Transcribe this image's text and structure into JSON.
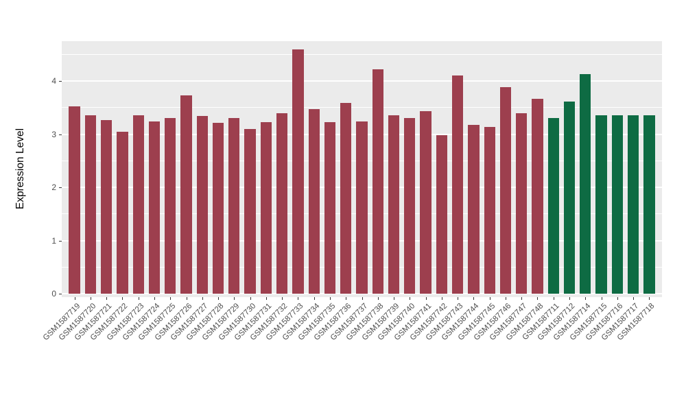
{
  "chart_data": {
    "type": "bar",
    "title": "",
    "xlabel": "",
    "ylabel": "Expression Level",
    "ylim": [
      0,
      4.75
    ],
    "yticks": [
      0,
      1,
      2,
      3,
      4
    ],
    "grid": true,
    "legend_position": "none",
    "panel_background": "#EBEBEB",
    "grid_color": "#FFFFFF",
    "axis_text_color": "#4D4D4D",
    "groups": [
      {
        "name": "group-1",
        "color": "#9D3F4E"
      },
      {
        "name": "group-2",
        "color": "#0E6B43"
      }
    ],
    "bars": [
      {
        "label": "GSM1587719",
        "value": 3.52,
        "group": 0
      },
      {
        "label": "GSM1587720",
        "value": 3.35,
        "group": 0
      },
      {
        "label": "GSM1587721",
        "value": 3.27,
        "group": 0
      },
      {
        "label": "GSM1587722",
        "value": 3.05,
        "group": 0
      },
      {
        "label": "GSM1587723",
        "value": 3.35,
        "group": 0
      },
      {
        "label": "GSM1587724",
        "value": 3.24,
        "group": 0
      },
      {
        "label": "GSM1587725",
        "value": 3.3,
        "group": 0
      },
      {
        "label": "GSM1587726",
        "value": 3.73,
        "group": 0
      },
      {
        "label": "GSM1587727",
        "value": 3.34,
        "group": 0
      },
      {
        "label": "GSM1587728",
        "value": 3.21,
        "group": 0
      },
      {
        "label": "GSM1587729",
        "value": 3.3,
        "group": 0
      },
      {
        "label": "GSM1587730",
        "value": 3.1,
        "group": 0
      },
      {
        "label": "GSM1587731",
        "value": 3.23,
        "group": 0
      },
      {
        "label": "GSM1587732",
        "value": 3.39,
        "group": 0
      },
      {
        "label": "GSM1587733",
        "value": 4.6,
        "group": 0
      },
      {
        "label": "GSM1587734",
        "value": 3.47,
        "group": 0
      },
      {
        "label": "GSM1587735",
        "value": 3.23,
        "group": 0
      },
      {
        "label": "GSM1587736",
        "value": 3.59,
        "group": 0
      },
      {
        "label": "GSM1587737",
        "value": 3.24,
        "group": 0
      },
      {
        "label": "GSM1587738",
        "value": 4.22,
        "group": 0
      },
      {
        "label": "GSM1587739",
        "value": 3.35,
        "group": 0
      },
      {
        "label": "GSM1587740",
        "value": 3.31,
        "group": 0
      },
      {
        "label": "GSM1587741",
        "value": 3.43,
        "group": 0
      },
      {
        "label": "GSM1587742",
        "value": 2.98,
        "group": 0
      },
      {
        "label": "GSM1587743",
        "value": 4.1,
        "group": 0
      },
      {
        "label": "GSM1587744",
        "value": 3.17,
        "group": 0
      },
      {
        "label": "GSM1587745",
        "value": 3.14,
        "group": 0
      },
      {
        "label": "GSM1587746",
        "value": 3.88,
        "group": 0
      },
      {
        "label": "GSM1587747",
        "value": 3.39,
        "group": 0
      },
      {
        "label": "GSM1587748",
        "value": 3.66,
        "group": 0
      },
      {
        "label": "GSM1587711",
        "value": 3.3,
        "group": 1
      },
      {
        "label": "GSM1587712",
        "value": 3.62,
        "group": 1
      },
      {
        "label": "GSM1587714",
        "value": 4.13,
        "group": 1
      },
      {
        "label": "GSM1587715",
        "value": 3.36,
        "group": 1
      },
      {
        "label": "GSM1587716",
        "value": 3.36,
        "group": 1
      },
      {
        "label": "GSM1587717",
        "value": 3.36,
        "group": 1
      },
      {
        "label": "GSM1587718",
        "value": 3.35,
        "group": 1
      }
    ]
  }
}
